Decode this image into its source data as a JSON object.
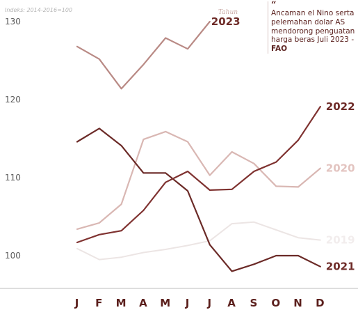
{
  "colors": {
    "series_2023": "#b98a85",
    "series_2022": "#7f3230",
    "series_2021": "#6b2a27",
    "series_2020": "#d9b7b3",
    "series_2019": "#ece5e4",
    "tick_text": "#5a5a5a",
    "month_text": "#5b1f1c"
  },
  "quote": {
    "mark": "“",
    "text": "Ancaman el Nino serta pelemahan dolar AS mendorong penguatan harga beras Juli 2023 - ",
    "source": "FAO"
  },
  "chart_data": {
    "type": "line",
    "index_note": "Indeks: 2014-2016=100",
    "year_label": "Tahun",
    "ylim": [
      97,
      131
    ],
    "y_ticks": [
      100,
      110,
      120,
      130
    ],
    "categories": [
      "J",
      "F",
      "M",
      "A",
      "M",
      "J",
      "J",
      "A",
      "S",
      "O",
      "N",
      "D"
    ],
    "grid": false,
    "series": [
      {
        "name": "2023",
        "values": [
          126.8,
          125.2,
          121.4,
          124.5,
          127.9,
          126.5,
          130.0,
          null,
          null,
          null,
          null,
          null
        ]
      },
      {
        "name": "2022",
        "values": [
          101.7,
          102.7,
          103.2,
          105.8,
          109.4,
          110.8,
          108.4,
          108.5,
          110.8,
          112.0,
          114.8,
          119.1
        ]
      },
      {
        "name": "2021",
        "values": [
          114.6,
          116.3,
          114.1,
          110.6,
          110.6,
          108.3,
          101.4,
          98.0,
          98.9,
          100.0,
          100.0,
          98.6
        ]
      },
      {
        "name": "2020",
        "values": [
          103.4,
          104.2,
          106.6,
          114.9,
          115.9,
          114.6,
          110.3,
          113.3,
          111.8,
          108.9,
          108.8,
          111.2
        ]
      },
      {
        "name": "2019",
        "values": [
          100.9,
          99.5,
          99.8,
          100.4,
          100.8,
          101.3,
          101.9,
          104.1,
          104.3,
          103.3,
          102.3,
          102.0
        ]
      }
    ]
  }
}
